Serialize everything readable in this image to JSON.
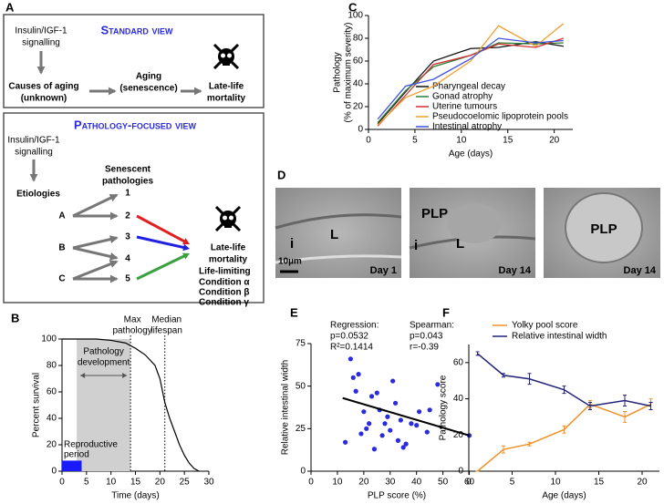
{
  "panel_labels": [
    "A",
    "B",
    "C",
    "D",
    "E",
    "F"
  ],
  "diagram_a": {
    "standard": {
      "title": "Standard view",
      "signal": [
        "Insulin/IGF-1",
        "signalling"
      ],
      "causes": [
        "Causes of aging",
        "(unknown)"
      ],
      "aging": [
        "Aging",
        "(senescence)"
      ],
      "outcome": [
        "Late-life",
        "mortality"
      ]
    },
    "pathology": {
      "title": "Pathology-focused view",
      "signal": [
        "Insulin/IGF-1",
        "signalling"
      ],
      "etiologies_label": "Etiologies",
      "etiologies": [
        "A",
        "B",
        "C"
      ],
      "pathologies_label": [
        "Senescent",
        "pathologies"
      ],
      "pathologies": [
        "1",
        "2",
        "3",
        "4",
        "5"
      ],
      "outcome": [
        "Late-life",
        "mortality"
      ],
      "legend_title": "Life-limiting",
      "conditions": [
        {
          "label": "Condition α",
          "color": "#e02020",
          "from": "2"
        },
        {
          "label": "Condition β",
          "color": "#2020e0",
          "from": "3"
        },
        {
          "label": "Condition γ",
          "color": "#3aa040",
          "from": "5"
        }
      ]
    }
  },
  "micrographs": [
    {
      "caption": "Day 1",
      "labels": [
        "L",
        "i"
      ],
      "scale": "10µm"
    },
    {
      "caption": "Day 14",
      "labels": [
        "PLP",
        "L",
        "i"
      ]
    },
    {
      "caption": "Day 14",
      "labels": [
        "PLP"
      ]
    }
  ],
  "chart_data": [
    {
      "type": "line",
      "xlabel": "Age (days)",
      "ylabel": [
        "Pathology",
        "(% of maximum severity)"
      ],
      "x": [
        1,
        4,
        7,
        11,
        14,
        18,
        21
      ],
      "series": [
        {
          "name": "Pharyngeal decay",
          "color": "#111111",
          "values": [
            5,
            33,
            60,
            71,
            72,
            77,
            73
          ]
        },
        {
          "name": "Gonad atrophy",
          "color": "#2e7d32",
          "values": [
            6,
            34,
            55,
            65,
            76,
            75,
            76
          ]
        },
        {
          "name": "Uterine tumours",
          "color": "#d32f2f",
          "values": [
            3,
            30,
            57,
            65,
            75,
            72,
            80
          ]
        },
        {
          "name": "Pseudocoelomic lipoprotein pools",
          "color": "#f0a030",
          "values": [
            4,
            28,
            38,
            60,
            91,
            73,
            93
          ]
        },
        {
          "name": "Intestinal atrophy",
          "color": "#3f51e0",
          "values": [
            9,
            38,
            44,
            62,
            80,
            76,
            78
          ]
        }
      ],
      "xlim": [
        0,
        22
      ],
      "ylim": [
        0,
        100
      ],
      "xticks": [
        0,
        5,
        10,
        15,
        20
      ],
      "yticks": [
        0,
        20,
        40,
        60,
        80,
        100
      ]
    },
    {
      "type": "survival",
      "xlabel": "Time (days)",
      "ylabel": "Percent survival",
      "x": [
        0,
        7,
        10,
        13,
        15,
        17,
        19,
        20,
        21,
        22,
        23,
        24,
        25,
        26,
        27,
        28
      ],
      "values": [
        100,
        100,
        99,
        97,
        93,
        88,
        80,
        70,
        52,
        40,
        30,
        20,
        12,
        6,
        2,
        0
      ],
      "color": "#000000",
      "shaded": {
        "label": [
          "Pathology",
          "development"
        ],
        "x": [
          3,
          14
        ]
      },
      "reproductive": {
        "label": [
          "Reproductive",
          "period"
        ],
        "x": [
          0,
          4
        ],
        "y": 8,
        "color": "#1a1aff"
      },
      "vlines": [
        {
          "label": [
            "Max",
            "pathology"
          ],
          "x": 14
        },
        {
          "label": [
            "Median",
            "lifespan"
          ],
          "x": 21
        }
      ],
      "xlim": [
        0,
        30
      ],
      "ylim": [
        0,
        100
      ],
      "xticks": [
        0,
        5,
        10,
        15,
        20,
        25,
        30
      ],
      "yticks": [
        0,
        20,
        40,
        60,
        80,
        100
      ]
    },
    {
      "type": "scatter",
      "xlabel": "PLP score (%)",
      "ylabel": "Relative intestinal width",
      "color": "#2a2ae0",
      "x": [
        13,
        15,
        16,
        17,
        18,
        19,
        20,
        21,
        22,
        23,
        24,
        25,
        26,
        27,
        28,
        29,
        30,
        31,
        32,
        33,
        34,
        35,
        36,
        38,
        40,
        41,
        44,
        45,
        48,
        60
      ],
      "values": [
        17,
        66,
        55,
        47,
        57,
        22,
        35,
        25,
        28,
        44,
        13,
        46,
        36,
        21,
        28,
        32,
        24,
        53,
        40,
        18,
        30,
        14,
        16,
        28,
        27,
        35,
        23,
        36,
        51,
        21
      ],
      "regression": {
        "x": [
          12,
          60
        ],
        "values": [
          43,
          21
        ]
      },
      "annotations": [
        [
          "Regression:",
          "p=0.0532",
          "R²=0.1414"
        ],
        [
          "Spearman:",
          "p=0.043",
          "r=-0.39"
        ]
      ],
      "xlim": [
        0,
        65
      ],
      "ylim": [
        0,
        75
      ],
      "xticks": [
        0,
        10,
        20,
        30,
        40,
        50,
        60
      ],
      "yticks": [
        0,
        25,
        50,
        75
      ]
    },
    {
      "type": "errorline",
      "xlabel": "Age (days)",
      "ylabel": "Pathology score",
      "x": [
        1,
        4,
        7,
        11,
        14,
        18,
        21
      ],
      "series": [
        {
          "name": "Yolky pool score",
          "color": "#f0902a",
          "values": [
            0,
            12,
            15,
            23,
            37,
            30,
            37
          ],
          "errors": [
            0,
            2,
            1,
            2,
            2,
            3,
            3
          ]
        },
        {
          "name": "Relative intestinal width",
          "color": "#23237a",
          "values": [
            65,
            53,
            51,
            45,
            36,
            39,
            36
          ],
          "errors": [
            1,
            1,
            3,
            2,
            2,
            3,
            2
          ]
        }
      ],
      "xlim": [
        0,
        22
      ],
      "ylim": [
        0,
        70
      ],
      "xticks": [
        0,
        5,
        10,
        15,
        20
      ],
      "yticks": [
        0,
        20,
        40,
        60
      ]
    }
  ]
}
